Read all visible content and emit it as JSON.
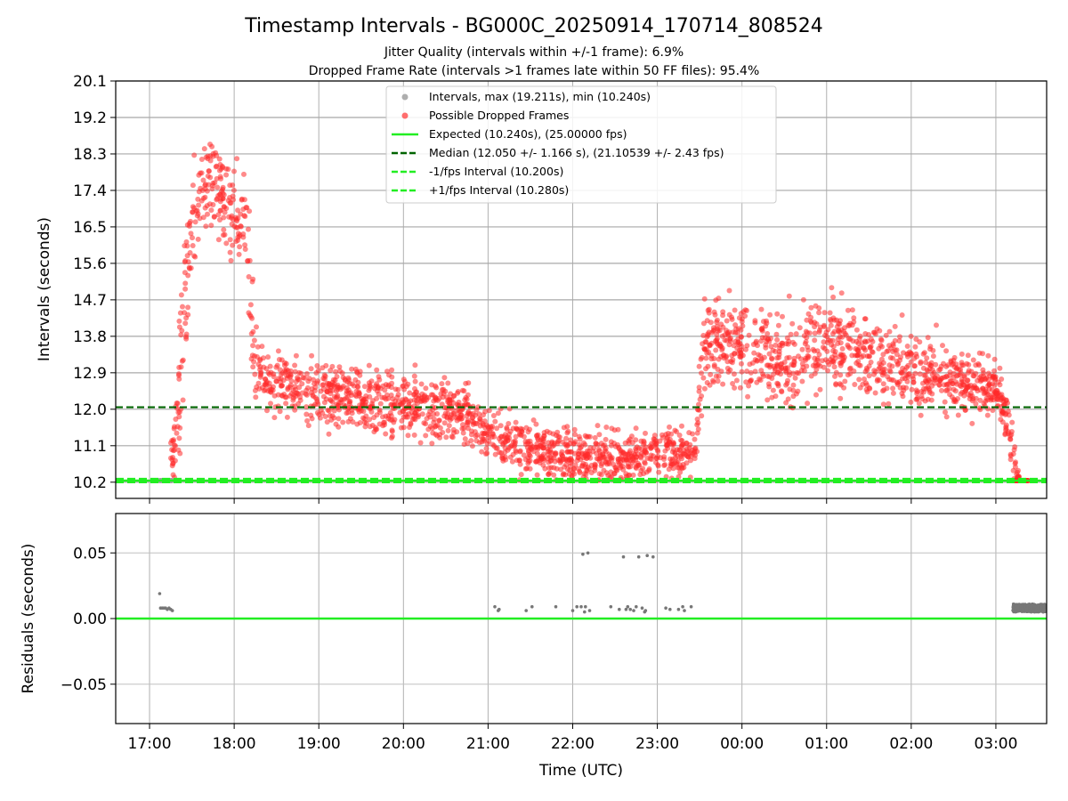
{
  "chart_data": {
    "type": "scatter",
    "title": "Timestamp Intervals - BG000C_20250914_170714_808524",
    "subtitle_1": "Jitter Quality (intervals within +/-1 frame): 6.9%",
    "subtitle_2": "Dropped Frame Rate (intervals >1 frames late within 50 FF files): 95.4%",
    "xlabel": "Time (UTC)",
    "x_ticks": [
      "17:00",
      "18:00",
      "19:00",
      "20:00",
      "21:00",
      "22:00",
      "23:00",
      "00:00",
      "01:00",
      "02:00",
      "03:00"
    ],
    "x_range_hours": [
      16.6,
      27.6
    ],
    "top": {
      "ylabel": "Intervals (seconds)",
      "ylim": [
        9.8,
        20.1
      ],
      "y_ticks": [
        "10.2",
        "11.1",
        "12.0",
        "12.9",
        "13.8",
        "14.7",
        "15.6",
        "16.5",
        "17.4",
        "18.3",
        "19.2",
        "20.1"
      ],
      "y_tick_values": [
        10.2,
        11.1,
        12.0,
        12.9,
        13.8,
        14.7,
        15.6,
        16.5,
        17.4,
        18.3,
        19.2,
        20.1
      ],
      "expected": 10.24,
      "median": 12.05,
      "lower_bound": 10.2,
      "upper_bound": 10.28,
      "legend": [
        {
          "label": "Intervals, max (19.211s), min (10.240s)",
          "color": "#a0a0a0",
          "kind": "dot"
        },
        {
          "label": "Possible Dropped Frames",
          "color": "#ff5555",
          "kind": "dot"
        },
        {
          "label": "Expected (10.240s), (25.00000 fps)",
          "color": "#22ee22",
          "kind": "solid"
        },
        {
          "label": "Median (12.050 +/- 1.166 s), (21.10539 +/- 2.43 fps)",
          "color": "#006400",
          "kind": "dash"
        },
        {
          "label": "-1/fps Interval (10.200s)",
          "color": "#22ee22",
          "kind": "dash"
        },
        {
          "label": "+1/fps Interval (10.280s)",
          "color": "#22ee22",
          "kind": "dash"
        }
      ],
      "dropped_trend": [
        {
          "x": 17.25,
          "mean": 10.6,
          "spread": 0.3
        },
        {
          "x": 17.32,
          "mean": 11.6,
          "spread": 0.5
        },
        {
          "x": 17.42,
          "mean": 14.5,
          "spread": 1.2
        },
        {
          "x": 17.55,
          "mean": 17.2,
          "spread": 0.5
        },
        {
          "x": 17.75,
          "mean": 17.6,
          "spread": 0.5
        },
        {
          "x": 17.95,
          "mean": 17.0,
          "spread": 0.6
        },
        {
          "x": 18.15,
          "mean": 16.3,
          "spread": 0.9
        },
        {
          "x": 18.25,
          "mean": 13.0,
          "spread": 0.5
        },
        {
          "x": 18.6,
          "mean": 12.6,
          "spread": 0.4
        },
        {
          "x": 19.0,
          "mean": 12.35,
          "spread": 0.35
        },
        {
          "x": 19.5,
          "mean": 12.25,
          "spread": 0.35
        },
        {
          "x": 20.0,
          "mean": 12.1,
          "spread": 0.35
        },
        {
          "x": 20.6,
          "mean": 11.95,
          "spread": 0.35
        },
        {
          "x": 21.0,
          "mean": 11.4,
          "spread": 0.35
        },
        {
          "x": 21.5,
          "mean": 11.0,
          "spread": 0.3
        },
        {
          "x": 22.0,
          "mean": 10.85,
          "spread": 0.3
        },
        {
          "x": 22.5,
          "mean": 10.75,
          "spread": 0.3
        },
        {
          "x": 23.0,
          "mean": 10.9,
          "spread": 0.3
        },
        {
          "x": 23.45,
          "mean": 11.0,
          "spread": 0.3
        },
        {
          "x": 23.55,
          "mean": 13.6,
          "spread": 0.55
        },
        {
          "x": 24.0,
          "mean": 13.6,
          "spread": 0.55
        },
        {
          "x": 24.5,
          "mean": 13.2,
          "spread": 0.55
        },
        {
          "x": 25.0,
          "mean": 13.8,
          "spread": 0.55
        },
        {
          "x": 25.5,
          "mean": 13.3,
          "spread": 0.5
        },
        {
          "x": 26.0,
          "mean": 13.0,
          "spread": 0.45
        },
        {
          "x": 26.5,
          "mean": 12.7,
          "spread": 0.4
        },
        {
          "x": 27.0,
          "mean": 12.5,
          "spread": 0.35
        },
        {
          "x": 27.1,
          "mean": 12.0,
          "spread": 0.3
        },
        {
          "x": 27.2,
          "mean": 10.9,
          "spread": 0.3
        },
        {
          "x": 27.28,
          "mean": 10.24,
          "spread": 0.02
        }
      ],
      "baseline_segments": [
        {
          "x_start": 17.12,
          "x_end": 17.26,
          "y": 10.24,
          "color": "#a0a0a0"
        },
        {
          "x_start": 27.22,
          "x_end": 27.38,
          "y": 10.24,
          "color": "#ff2222"
        }
      ]
    },
    "bottom": {
      "ylabel": "Residuals (seconds)",
      "ylim": [
        -0.08,
        0.08
      ],
      "y_ticks": [
        "0.05",
        "0.00",
        "−0.05"
      ],
      "y_tick_values": [
        0.05,
        0.0,
        -0.05
      ],
      "zero_line_color": "#22ee22",
      "points": [
        {
          "x": 17.12,
          "y": 0.019
        },
        {
          "x": 17.13,
          "y": 0.008
        },
        {
          "x": 17.15,
          "y": 0.008
        },
        {
          "x": 17.17,
          "y": 0.008
        },
        {
          "x": 17.19,
          "y": 0.008
        },
        {
          "x": 17.21,
          "y": 0.007
        },
        {
          "x": 17.23,
          "y": 0.008
        },
        {
          "x": 17.25,
          "y": 0.007
        },
        {
          "x": 17.27,
          "y": 0.006
        },
        {
          "x": 21.08,
          "y": 0.009
        },
        {
          "x": 21.12,
          "y": 0.006
        },
        {
          "x": 21.13,
          "y": 0.007
        },
        {
          "x": 21.45,
          "y": 0.006
        },
        {
          "x": 21.52,
          "y": 0.009
        },
        {
          "x": 21.8,
          "y": 0.009
        },
        {
          "x": 22.0,
          "y": 0.006
        },
        {
          "x": 22.05,
          "y": 0.009
        },
        {
          "x": 22.1,
          "y": 0.009
        },
        {
          "x": 22.12,
          "y": 0.049
        },
        {
          "x": 22.18,
          "y": 0.05
        },
        {
          "x": 22.14,
          "y": 0.005
        },
        {
          "x": 22.15,
          "y": 0.009
        },
        {
          "x": 22.2,
          "y": 0.006
        },
        {
          "x": 22.45,
          "y": 0.009
        },
        {
          "x": 22.55,
          "y": 0.007
        },
        {
          "x": 22.6,
          "y": 0.047
        },
        {
          "x": 22.63,
          "y": 0.007
        },
        {
          "x": 22.65,
          "y": 0.009
        },
        {
          "x": 22.68,
          "y": 0.007
        },
        {
          "x": 22.72,
          "y": 0.006
        },
        {
          "x": 22.75,
          "y": 0.009
        },
        {
          "x": 22.78,
          "y": 0.047
        },
        {
          "x": 22.82,
          "y": 0.008
        },
        {
          "x": 22.85,
          "y": 0.005
        },
        {
          "x": 22.86,
          "y": 0.006
        },
        {
          "x": 22.88,
          "y": 0.048
        },
        {
          "x": 22.95,
          "y": 0.047
        },
        {
          "x": 23.1,
          "y": 0.008
        },
        {
          "x": 23.15,
          "y": 0.007
        },
        {
          "x": 23.25,
          "y": 0.007
        },
        {
          "x": 23.3,
          "y": 0.009
        },
        {
          "x": 23.32,
          "y": 0.006
        },
        {
          "x": 23.4,
          "y": 0.009
        }
      ],
      "cluster": {
        "x_start": 27.2,
        "x_end": 27.6,
        "y_min": 0.005,
        "y_max": 0.011
      }
    }
  }
}
